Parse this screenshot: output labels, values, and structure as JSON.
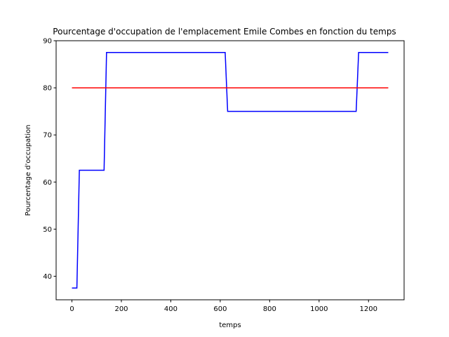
{
  "chart_data": {
    "type": "line",
    "title": "Pourcentage d'occupation de l'emplacement Emile Combes en fonction du temps",
    "xlabel": "temps",
    "ylabel": "Pourcentage d'occupation",
    "xlim": [
      -64,
      1344
    ],
    "ylim": [
      35,
      90
    ],
    "xticks": [
      0,
      200,
      400,
      600,
      800,
      1000,
      1200
    ],
    "yticks": [
      40,
      50,
      60,
      70,
      80,
      90
    ],
    "grid": false,
    "series": [
      {
        "color": "#0000ff",
        "x": [
          0,
          20,
          30,
          130,
          140,
          620,
          630,
          1150,
          1160,
          1280
        ],
        "y": [
          37.5,
          37.5,
          62.5,
          62.5,
          87.5,
          87.5,
          75,
          75,
          87.5,
          87.5
        ]
      },
      {
        "color": "#ff0000",
        "x": [
          0,
          1280
        ],
        "y": [
          80,
          80
        ]
      }
    ]
  }
}
